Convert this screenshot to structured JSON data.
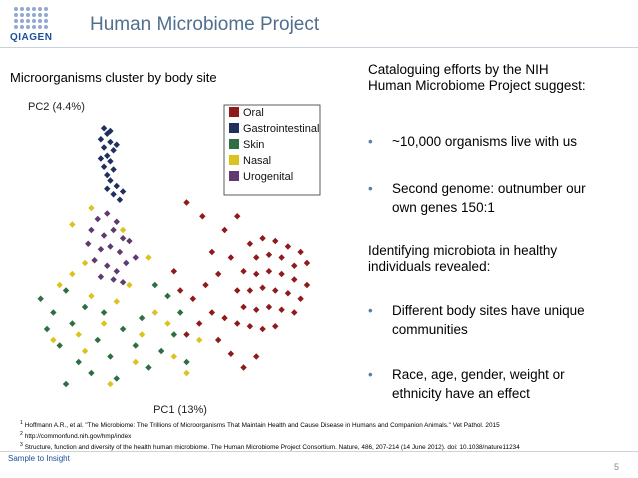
{
  "logo": "QIAGEN",
  "header": {
    "title": "Human Microbiome Project"
  },
  "subtitle": "Microorganisms cluster by body site",
  "chart_data": {
    "type": "scatter",
    "y_label": "PC2 (4.4%)",
    "x_label": "PC1 (13%)",
    "xlim": [
      0,
      100
    ],
    "ylim": [
      0,
      100
    ],
    "series": [
      {
        "name": "Oral",
        "color": "#8e1a1c",
        "x": [
          70,
          74,
          78,
          82,
          86,
          88,
          72,
          76,
          80,
          84,
          68,
          72,
          76,
          80,
          84,
          88,
          66,
          70,
          74,
          78,
          82,
          86,
          68,
          72,
          76,
          80,
          84,
          62,
          66,
          70,
          74,
          78,
          56,
          52,
          48,
          58,
          54,
          50,
          60,
          64,
          68,
          72,
          58,
          62,
          55,
          50,
          66,
          46,
          60,
          64
        ],
        "values": [
          55,
          57,
          56,
          54,
          52,
          48,
          50,
          51,
          50,
          47,
          45,
          44,
          45,
          44,
          42,
          40,
          38,
          38,
          39,
          38,
          37,
          35,
          32,
          31,
          32,
          31,
          30,
          28,
          26,
          25,
          24,
          25,
          40,
          35,
          38,
          30,
          26,
          22,
          20,
          15,
          10,
          14,
          52,
          60,
          65,
          70,
          65,
          45,
          44,
          50
        ]
      },
      {
        "name": "Gastrointestinal",
        "color": "#1f2f5e",
        "x": [
          24,
          25,
          23,
          26,
          24,
          27,
          25,
          26,
          24,
          27,
          25,
          26,
          28,
          25,
          27,
          29,
          23,
          28,
          26,
          30
        ],
        "values": [
          97,
          95,
          93,
          92,
          90,
          89,
          87,
          85,
          83,
          82,
          80,
          78,
          76,
          75,
          73,
          71,
          86,
          91,
          96,
          74
        ]
      },
      {
        "name": "Skin",
        "color": "#2e6e45",
        "x": [
          4,
          8,
          12,
          6,
          10,
          14,
          18,
          22,
          16,
          20,
          26,
          30,
          34,
          38,
          42,
          46,
          48,
          44,
          36,
          28,
          12,
          24,
          40,
          50
        ],
        "values": [
          35,
          30,
          38,
          24,
          18,
          26,
          32,
          20,
          12,
          8,
          14,
          24,
          18,
          10,
          16,
          22,
          30,
          36,
          28,
          6,
          4,
          30,
          40,
          12
        ]
      },
      {
        "name": "Nasal",
        "color": "#dcc21e",
        "x": [
          10,
          14,
          18,
          8,
          16,
          20,
          24,
          28,
          32,
          36,
          40,
          44,
          34,
          26,
          18,
          50,
          14,
          20,
          38,
          30,
          46,
          54
        ],
        "values": [
          40,
          44,
          48,
          20,
          22,
          36,
          26,
          34,
          40,
          22,
          30,
          26,
          12,
          4,
          16,
          8,
          62,
          68,
          50,
          60,
          14,
          20
        ]
      },
      {
        "name": "Urogenital",
        "color": "#5e3a6e",
        "x": [
          22,
          25,
          28,
          20,
          24,
          27,
          30,
          19,
          23,
          26,
          29,
          32,
          21,
          25,
          28,
          31,
          34,
          27,
          23,
          30
        ],
        "values": [
          64,
          66,
          63,
          60,
          58,
          60,
          57,
          55,
          53,
          54,
          52,
          56,
          49,
          47,
          45,
          48,
          50,
          42,
          43,
          41
        ]
      }
    ]
  },
  "intro": "Cataloguing efforts by the NIH Human Microbiome Project suggest:",
  "bullets1": [
    "~10,000 organisms live with us",
    "Second genome: outnumber our own genes 150:1"
  ],
  "heading2": "Identifying microbiota in healthy individuals revealed:",
  "bullets2": [
    "Different body sites have unique communities",
    "Race, age, gender, weight or ethnicity have an effect"
  ],
  "footnotes": [
    {
      "num": "1",
      "text": "Hoffmann A.R., et al. \"The Microbiome: The Trillions of Microorganisms That Maintain Health and Cause Disease in Humans and Companion Animals.\" Vet Pathol. 2015"
    },
    {
      "num": "2",
      "text": "http://commonfund.nih.gov/hmp/index"
    },
    {
      "num": "3",
      "text": "Structure, function and diversity of the health human microbiome. The Human Microbiome Project Consortium. Nature, 486, 207-214 (14 June 2012). doi: 10.1038/nature11234"
    }
  ],
  "footer": {
    "tagline": "Sample to Insight",
    "page": "5"
  }
}
